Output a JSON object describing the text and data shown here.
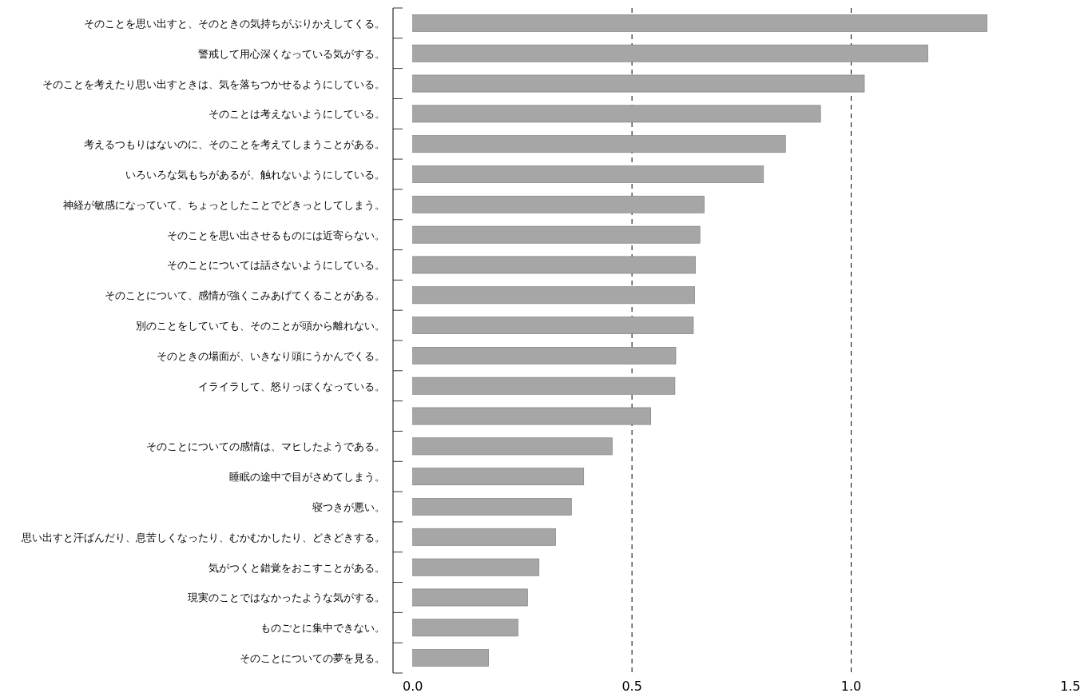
{
  "chart_data": {
    "type": "bar",
    "orientation": "horizontal",
    "categories": [
      "そのことを思い出すと、そのときの気持ちがぶりかえしてくる。",
      "警戒して用心深くなっている気がする。",
      "そのことを考えたり思い出すときは、気を落ちつかせるようにしている。",
      "そのことは考えないようにしている。",
      "考えるつもりはないのに、そのことを考えてしまうことがある。",
      "いろいろな気もちがあるが、触れないようにしている。",
      "神経が敏感になっていて、ちょっとしたことでどきっとしてしまう。",
      "そのことを思い出させるものには近寄らない。",
      "そのことについては話さないようにしている。",
      "そのことについて、感情が強くこみあげてくることがある。",
      "別のことをしていても、そのことが頭から離れない。",
      "そのときの場面が、いきなり頭にうかんでくる。",
      "イライラして、怒りっぽくなっている。",
      null,
      "そのことについての感情は、マヒしたようである。",
      "睡眠の途中で目がさめてしまう。",
      "寝つきが悪い。",
      "思い出すと汗ばんだり、息苦しくなったり、むかむかしたり、どきどきする。",
      "気がつくと錯覚をおこすことがある。",
      "現実のことではなかったような気がする。",
      "ものごとに集中できない。",
      "そのことについての夢を見る。"
    ],
    "values": [
      1.31,
      1.175,
      1.03,
      0.93,
      0.85,
      0.8,
      0.665,
      0.655,
      0.645,
      0.643,
      0.64,
      0.6,
      0.598,
      0.543,
      0.455,
      0.39,
      0.362,
      0.326,
      0.288,
      0.262,
      0.24,
      0.173
    ],
    "color": "#a6a6a6",
    "xlim": [
      -0.045,
      1.5
    ],
    "xticks": [
      {
        "value": 0,
        "label": "0.0"
      },
      0.5,
      {
        "value": 1,
        "label": "1.0"
      },
      1.5
    ],
    "ref_lines": [
      {
        "axis": "x",
        "value": 0.5,
        "color": "#000000",
        "line_style": "dashed"
      },
      {
        "axis": "x",
        "value": 1,
        "color": "#000000",
        "line_style": "dashed"
      }
    ]
  }
}
